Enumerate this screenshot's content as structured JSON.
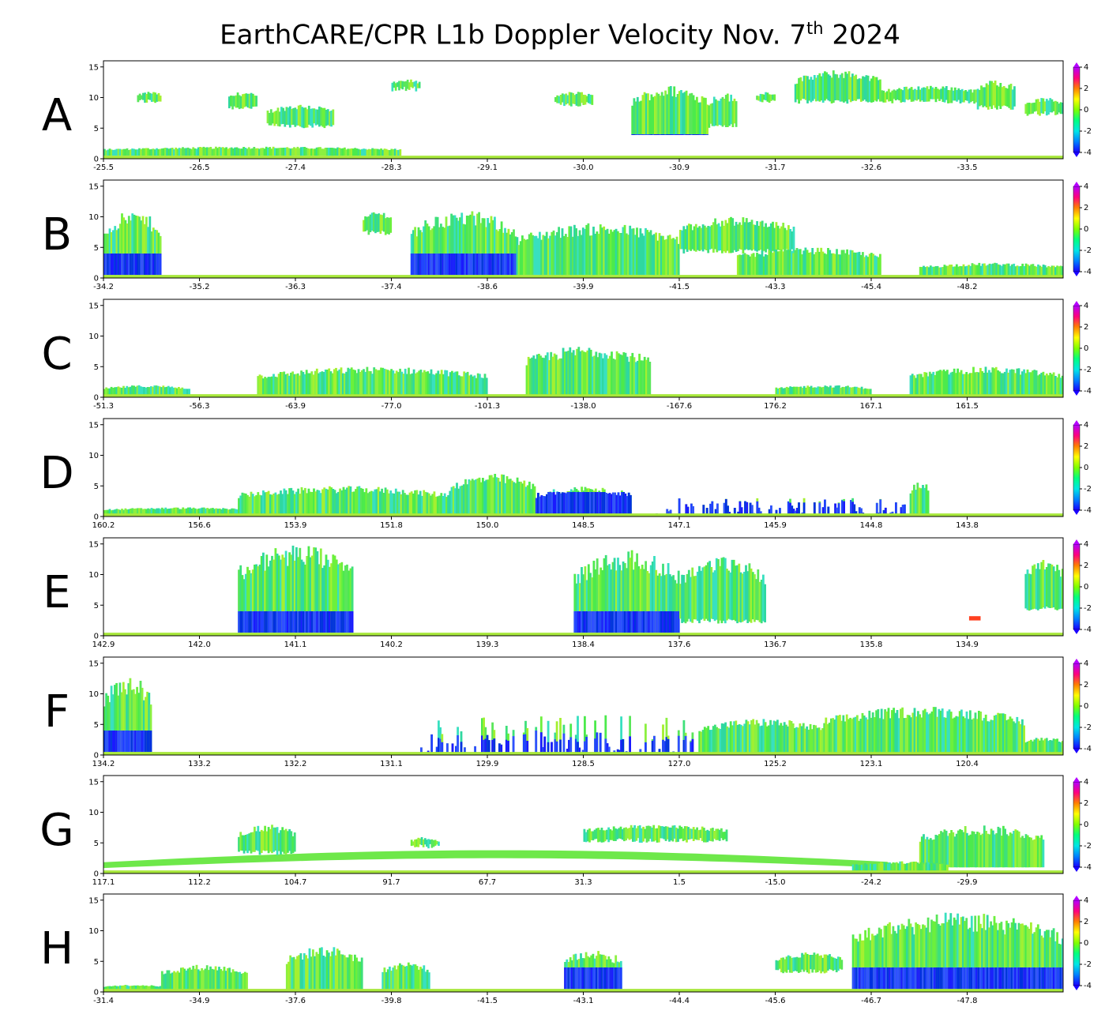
{
  "figure": {
    "title_main": "EarthCARE/CPR L1b Doppler Velocity Nov. 7",
    "title_sup": "th",
    "title_end": " 2024"
  },
  "colors": {
    "colormap": [
      "#1a00ff",
      "#0080ff",
      "#00e6e6",
      "#00ff80",
      "#80ff00",
      "#ffff00",
      "#ff8000",
      "#ff0080",
      "#b400ff"
    ],
    "cloud_main": "#4cea4c",
    "downdraft": "#1a1aff"
  },
  "chart_data": [
    {
      "panel": "A",
      "type": "heatmap",
      "x_ticks": [
        "-25.5",
        "-26.5",
        "-27.4",
        "-28.3",
        "-29.1",
        "-30.0",
        "-30.9",
        "-31.7",
        "-32.6",
        "-33.5"
      ],
      "y_ticks": [
        "0",
        "5",
        "10",
        "15"
      ],
      "ylim": [
        0,
        16
      ],
      "colorbar": {
        "ticks": [
          "4",
          "2",
          "0",
          "-2",
          "-4"
        ],
        "range": [
          -4,
          4
        ]
      },
      "cloud_regions": [
        {
          "x0": 0.035,
          "x1": 0.06,
          "z0": 9,
          "z1": 11,
          "kind": "mixed"
        },
        {
          "x0": 0.13,
          "x1": 0.16,
          "z0": 8,
          "z1": 11,
          "kind": "mixed"
        },
        {
          "x0": 0.17,
          "x1": 0.24,
          "z0": 5,
          "z1": 9,
          "kind": "mixed"
        },
        {
          "x0": 0.0,
          "x1": 0.31,
          "z0": 0.5,
          "z1": 2,
          "kind": "low"
        },
        {
          "x0": 0.3,
          "x1": 0.33,
          "z0": 11,
          "z1": 13,
          "kind": "mixed"
        },
        {
          "x0": 0.47,
          "x1": 0.51,
          "z0": 8.5,
          "z1": 11,
          "kind": "mixed"
        },
        {
          "x0": 0.55,
          "x1": 0.63,
          "z0": 4,
          "z1": 12,
          "kind": "convective"
        },
        {
          "x0": 0.63,
          "x1": 0.66,
          "z0": 5,
          "z1": 11,
          "kind": "mixed"
        },
        {
          "x0": 0.68,
          "x1": 0.7,
          "z0": 9,
          "z1": 11,
          "kind": "mixed"
        },
        {
          "x0": 0.72,
          "x1": 0.81,
          "z0": 9,
          "z1": 14.5,
          "kind": "mixed"
        },
        {
          "x0": 0.81,
          "x1": 0.91,
          "z0": 9,
          "z1": 12,
          "kind": "mixed"
        },
        {
          "x0": 0.91,
          "x1": 0.95,
          "z0": 8,
          "z1": 13,
          "kind": "mixed"
        },
        {
          "x0": 0.96,
          "x1": 1.0,
          "z0": 7,
          "z1": 10,
          "kind": "mixed"
        }
      ]
    },
    {
      "panel": "B",
      "type": "heatmap",
      "x_ticks": [
        "-34.2",
        "-35.2",
        "-36.3",
        "-37.4",
        "-38.6",
        "-39.9",
        "-41.5",
        "-43.3",
        "-45.4",
        "-48.2"
      ],
      "y_ticks": [
        "0",
        "5",
        "10",
        "15"
      ],
      "ylim": [
        0,
        16
      ],
      "colorbar": {
        "ticks": [
          "4",
          "2",
          "0",
          "-2",
          "-4"
        ],
        "range": [
          -4,
          4
        ]
      },
      "cloud_regions": [
        {
          "x0": 0.0,
          "x1": 0.06,
          "z0": 0.5,
          "z1": 11,
          "kind": "convective"
        },
        {
          "x0": 0.27,
          "x1": 0.3,
          "z0": 7,
          "z1": 11,
          "kind": "mixed"
        },
        {
          "x0": 0.32,
          "x1": 0.43,
          "z0": 0.5,
          "z1": 11,
          "kind": "convective"
        },
        {
          "x0": 0.43,
          "x1": 0.6,
          "z0": 0.5,
          "z1": 9,
          "kind": "mixed"
        },
        {
          "x0": 0.6,
          "x1": 0.72,
          "z0": 4,
          "z1": 10,
          "kind": "mixed"
        },
        {
          "x0": 0.66,
          "x1": 0.81,
          "z0": 0.5,
          "z1": 5,
          "kind": "mixed"
        },
        {
          "x0": 0.85,
          "x1": 1.0,
          "z0": 0.3,
          "z1": 2.5,
          "kind": "band"
        }
      ]
    },
    {
      "panel": "C",
      "type": "heatmap",
      "x_ticks": [
        "-51.3",
        "-56.3",
        "-63.9",
        "-77.0",
        "-101.3",
        "-138.0",
        "-167.6",
        "176.2",
        "167.1",
        "161.5"
      ],
      "y_ticks": [
        "0",
        "5",
        "10",
        "15"
      ],
      "ylim": [
        0,
        16
      ],
      "colorbar": {
        "ticks": [
          "4",
          "2",
          "0",
          "-2",
          "-4"
        ],
        "range": [
          -4,
          4
        ]
      },
      "cloud_regions": [
        {
          "x0": 0.0,
          "x1": 0.09,
          "z0": 0.3,
          "z1": 2,
          "kind": "low"
        },
        {
          "x0": 0.16,
          "x1": 0.4,
          "z0": 0.3,
          "z1": 5,
          "kind": "mixed"
        },
        {
          "x0": 0.44,
          "x1": 0.57,
          "z0": 0.3,
          "z1": 8.5,
          "kind": "mixed"
        },
        {
          "x0": 0.7,
          "x1": 0.8,
          "z0": 0.3,
          "z1": 2,
          "kind": "low"
        },
        {
          "x0": 0.84,
          "x1": 1.0,
          "z0": 0.3,
          "z1": 5,
          "kind": "mixed"
        }
      ]
    },
    {
      "panel": "D",
      "type": "heatmap",
      "x_ticks": [
        "160.2",
        "156.6",
        "153.9",
        "151.8",
        "150.0",
        "148.5",
        "147.1",
        "145.9",
        "144.8",
        "143.8"
      ],
      "y_ticks": [
        "0",
        "5",
        "10",
        "15"
      ],
      "ylim": [
        0,
        16
      ],
      "colorbar": {
        "ticks": [
          "4",
          "2",
          "0",
          "-2",
          "-4"
        ],
        "range": [
          -4,
          4
        ]
      },
      "cloud_regions": [
        {
          "x0": 0.0,
          "x1": 0.16,
          "z0": 0.3,
          "z1": 1.5,
          "kind": "low"
        },
        {
          "x0": 0.14,
          "x1": 0.36,
          "z0": 0.3,
          "z1": 5,
          "kind": "mixed"
        },
        {
          "x0": 0.36,
          "x1": 0.45,
          "z0": 0.3,
          "z1": 7,
          "kind": "mixed"
        },
        {
          "x0": 0.45,
          "x1": 0.55,
          "z0": 0.3,
          "z1": 5,
          "kind": "convective"
        },
        {
          "x0": 0.57,
          "x1": 0.85,
          "z0": 0.3,
          "z1": 3,
          "kind": "spikes"
        },
        {
          "x0": 0.84,
          "x1": 0.86,
          "z0": 0.3,
          "z1": 6,
          "kind": "mixed"
        }
      ]
    },
    {
      "panel": "E",
      "type": "heatmap",
      "x_ticks": [
        "142.9",
        "142.0",
        "141.1",
        "140.2",
        "139.3",
        "138.4",
        "137.6",
        "136.7",
        "135.8",
        "134.9"
      ],
      "y_ticks": [
        "0",
        "5",
        "10",
        "15"
      ],
      "ylim": [
        0,
        16
      ],
      "colorbar": {
        "ticks": [
          "4",
          "2",
          "0",
          "-2",
          "-4"
        ],
        "range": [
          -4,
          4
        ]
      },
      "cloud_regions": [
        {
          "x0": 0.14,
          "x1": 0.26,
          "z0": 0.5,
          "z1": 15,
          "kind": "convective"
        },
        {
          "x0": 0.49,
          "x1": 0.6,
          "z0": 0.5,
          "z1": 14,
          "kind": "convective"
        },
        {
          "x0": 0.6,
          "x1": 0.69,
          "z0": 2,
          "z1": 13,
          "kind": "mixed"
        },
        {
          "x0": 0.96,
          "x1": 1.0,
          "z0": 4,
          "z1": 13,
          "kind": "mixed"
        }
      ],
      "highlight": {
        "x0": 0.902,
        "x1": 0.914,
        "z0": 2.5,
        "z1": 3.2
      }
    },
    {
      "panel": "F",
      "type": "heatmap",
      "x_ticks": [
        "134.2",
        "133.2",
        "132.2",
        "131.1",
        "129.9",
        "128.5",
        "127.0",
        "125.2",
        "123.1",
        "120.4"
      ],
      "y_ticks": [
        "0",
        "5",
        "10",
        "15"
      ],
      "ylim": [
        0,
        16
      ],
      "colorbar": {
        "ticks": [
          "4",
          "2",
          "0",
          "-2",
          "-4"
        ],
        "range": [
          -4,
          4
        ]
      },
      "cloud_regions": [
        {
          "x0": 0.0,
          "x1": 0.05,
          "z0": 0.5,
          "z1": 13,
          "kind": "convective"
        },
        {
          "x0": 0.33,
          "x1": 0.62,
          "z0": 0.3,
          "z1": 6.5,
          "kind": "spikes"
        },
        {
          "x0": 0.62,
          "x1": 0.75,
          "z0": 0.3,
          "z1": 6,
          "kind": "mixed"
        },
        {
          "x0": 0.75,
          "x1": 0.96,
          "z0": 0.3,
          "z1": 8,
          "kind": "mixed"
        },
        {
          "x0": 0.96,
          "x1": 1.0,
          "z0": 0.3,
          "z1": 3,
          "kind": "mixed"
        }
      ]
    },
    {
      "panel": "G",
      "type": "heatmap",
      "x_ticks": [
        "117.1",
        "112.2",
        "104.7",
        "91.7",
        "67.7",
        "31.3",
        "1.5",
        "-15.0",
        "-24.2",
        "-29.9"
      ],
      "y_ticks": [
        "0",
        "5",
        "10",
        "15"
      ],
      "ylim": [
        0,
        16
      ],
      "colorbar": {
        "ticks": [
          "4",
          "2",
          "0",
          "-2",
          "-4"
        ],
        "range": [
          -4,
          4
        ]
      },
      "cloud_regions": [
        {
          "x0": 0.14,
          "x1": 0.2,
          "z0": 3,
          "z1": 8,
          "kind": "mixed"
        },
        {
          "x0": 0.32,
          "x1": 0.35,
          "z0": 4,
          "z1": 6,
          "kind": "mixed"
        },
        {
          "x0": 0.5,
          "x1": 0.65,
          "z0": 5,
          "z1": 8,
          "kind": "mixed"
        },
        {
          "x0": 0.85,
          "x1": 0.98,
          "z0": 1,
          "z1": 8,
          "kind": "mixed"
        },
        {
          "x0": 0.78,
          "x1": 0.88,
          "z0": 0.3,
          "z1": 2,
          "kind": "low"
        }
      ],
      "arc_band": true
    },
    {
      "panel": "H",
      "type": "heatmap",
      "x_ticks": [
        "-31.4",
        "-34.9",
        "-37.6",
        "-39.8",
        "-41.5",
        "-43.1",
        "-44.4",
        "-45.6",
        "-46.7",
        "-47.8"
      ],
      "y_ticks": [
        "0",
        "5",
        "10",
        "15"
      ],
      "ylim": [
        0,
        16
      ],
      "colorbar": {
        "ticks": [
          "4",
          "2",
          "0",
          "-2",
          "-4"
        ],
        "range": [
          -4,
          4
        ]
      },
      "cloud_regions": [
        {
          "x0": 0.0,
          "x1": 0.06,
          "z0": 0.3,
          "z1": 1.2,
          "kind": "low"
        },
        {
          "x0": 0.06,
          "x1": 0.15,
          "z0": 0.3,
          "z1": 4.5,
          "kind": "mixed"
        },
        {
          "x0": 0.19,
          "x1": 0.27,
          "z0": 0.3,
          "z1": 7.5,
          "kind": "mixed"
        },
        {
          "x0": 0.29,
          "x1": 0.34,
          "z0": 0.3,
          "z1": 5,
          "kind": "mixed"
        },
        {
          "x0": 0.48,
          "x1": 0.54,
          "z0": 0.3,
          "z1": 7,
          "kind": "convective"
        },
        {
          "x0": 0.7,
          "x1": 0.77,
          "z0": 3,
          "z1": 6.5,
          "kind": "mixed"
        },
        {
          "x0": 0.78,
          "x1": 1.0,
          "z0": 0.3,
          "z1": 13,
          "kind": "convective"
        }
      ]
    }
  ],
  "panel_labels": [
    "A",
    "B",
    "C",
    "D",
    "E",
    "F",
    "G",
    "H"
  ]
}
